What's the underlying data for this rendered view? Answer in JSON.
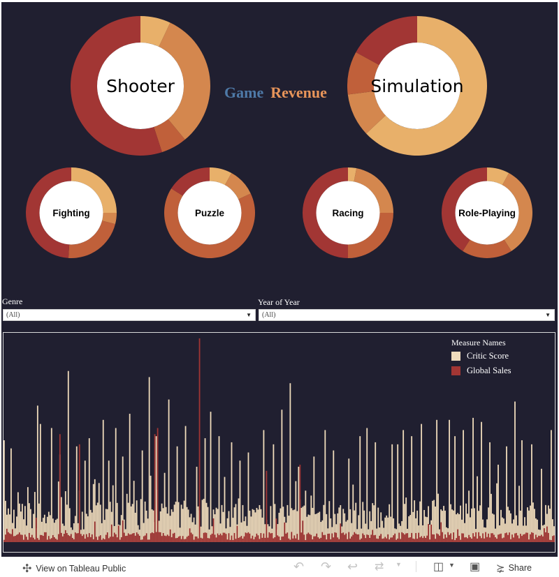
{
  "dashboard": {
    "title_part1": "Game",
    "title_part2": "Revenue",
    "colors": {
      "background": "#201f30",
      "game": "#4e79a7",
      "revenue": "#e8955a"
    }
  },
  "donuts": {
    "palette": [
      "#e8b06a",
      "#d4874e",
      "#c0603a",
      "#a23634"
    ],
    "shooter": {
      "label": "Shooter",
      "segments": [
        0.07,
        0.32,
        0.06,
        0.55
      ]
    },
    "simulation": {
      "label": "Simulation",
      "segments": [
        0.63,
        0.1,
        0.1,
        0.17
      ]
    },
    "fighting": {
      "label": "Fighting",
      "segments": [
        0.25,
        0.04,
        0.22,
        0.49
      ]
    },
    "puzzle": {
      "label": "Puzzle",
      "segments": [
        0.08,
        0.1,
        0.66,
        0.16
      ]
    },
    "racing": {
      "label": "Racing",
      "segments": [
        0.03,
        0.22,
        0.25,
        0.5
      ]
    },
    "roleplaying": {
      "label": "Role-Playing",
      "segments": [
        0.08,
        0.33,
        0.18,
        0.41
      ]
    }
  },
  "filters": {
    "genre": {
      "label": "Genre",
      "value": "(All)"
    },
    "year": {
      "label": "Year of Year",
      "value": "(All)"
    }
  },
  "legend": {
    "title": "Measure Names",
    "critic_label": "Critic Score",
    "sales_label": "Global Sales",
    "critic_color": "#f0dcbc",
    "sales_color": "#a23634"
  },
  "chart_data": {
    "type": "bar",
    "title": "",
    "xlabel": "",
    "ylabel": "",
    "ylim": [
      0,
      100
    ],
    "bar_count": 395,
    "series": [
      {
        "name": "Critic Score",
        "color": "#f0dcbc",
        "peaks": [
          [
            0,
            50
          ],
          [
            5,
            46
          ],
          [
            17,
            27
          ],
          [
            24,
            67
          ],
          [
            26,
            58
          ],
          [
            34,
            56
          ],
          [
            40,
            43
          ],
          [
            44,
            25
          ],
          [
            46,
            84
          ],
          [
            52,
            47
          ],
          [
            58,
            40
          ],
          [
            61,
            51
          ],
          [
            68,
            29
          ],
          [
            71,
            60
          ],
          [
            75,
            40
          ],
          [
            80,
            56
          ],
          [
            85,
            42
          ],
          [
            90,
            63
          ],
          [
            99,
            45
          ],
          [
            104,
            81
          ],
          [
            109,
            52
          ],
          [
            115,
            34
          ],
          [
            118,
            70
          ],
          [
            124,
            47
          ],
          [
            130,
            57
          ],
          [
            138,
            37
          ],
          [
            144,
            51
          ],
          [
            148,
            64
          ],
          [
            154,
            52
          ],
          [
            158,
            32
          ],
          [
            163,
            49
          ],
          [
            169,
            40
          ],
          [
            175,
            44
          ],
          [
            186,
            55
          ],
          [
            193,
            48
          ],
          [
            199,
            65
          ],
          [
            205,
            78
          ],
          [
            211,
            37
          ],
          [
            222,
            42
          ],
          [
            230,
            55
          ],
          [
            236,
            45
          ],
          [
            247,
            41
          ],
          [
            255,
            52
          ],
          [
            260,
            56
          ],
          [
            266,
            49
          ],
          [
            278,
            48
          ],
          [
            282,
            48
          ],
          [
            286,
            55
          ],
          [
            292,
            52
          ],
          [
            299,
            58
          ],
          [
            310,
            60
          ],
          [
            319,
            60
          ],
          [
            323,
            52
          ],
          [
            329,
            55
          ],
          [
            336,
            61
          ],
          [
            342,
            59
          ],
          [
            348,
            49
          ],
          [
            354,
            38
          ],
          [
            360,
            47
          ],
          [
            366,
            69
          ],
          [
            371,
            50
          ],
          [
            378,
            48
          ],
          [
            385,
            36
          ],
          [
            392,
            55
          ]
        ]
      },
      {
        "name": "Global Sales",
        "color": "#a23634",
        "peaks": [
          [
            40,
            53
          ],
          [
            54,
            48
          ],
          [
            108,
            53
          ],
          [
            110,
            56
          ],
          [
            140,
            100
          ],
          [
            188,
            35
          ],
          [
            212,
            38
          ]
        ]
      }
    ]
  },
  "toolbar": {
    "view_label": "View on Tableau Public",
    "share_label": "Share"
  }
}
